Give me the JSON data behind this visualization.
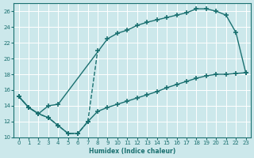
{
  "bg_color": "#cce8eb",
  "line_color": "#1a7070",
  "grid_color": "#ffffff",
  "xlabel": "Humidex (Indice chaleur)",
  "xlim": [
    -0.5,
    23.5
  ],
  "ylim": [
    10,
    27
  ],
  "xticks": [
    0,
    1,
    2,
    3,
    4,
    5,
    6,
    7,
    8,
    9,
    10,
    11,
    12,
    13,
    14,
    15,
    16,
    17,
    18,
    19,
    20,
    21,
    22,
    23
  ],
  "yticks": [
    10,
    12,
    14,
    16,
    18,
    20,
    22,
    24,
    26
  ],
  "curve_upper_x": [
    0,
    1,
    2,
    3,
    4,
    9,
    10,
    11,
    12,
    13,
    14,
    15,
    16,
    17,
    18,
    19,
    20,
    21,
    22,
    23
  ],
  "curve_upper_y": [
    15.2,
    13.8,
    13.0,
    14.0,
    14.2,
    22.5,
    23.2,
    23.6,
    24.2,
    24.6,
    24.9,
    25.2,
    25.5,
    25.8,
    26.3,
    26.3,
    26.0,
    25.5,
    23.3,
    18.2
  ],
  "curve_dashed_x": [
    0,
    1,
    2,
    3,
    4,
    5,
    6,
    7,
    8
  ],
  "curve_dashed_y": [
    15.2,
    13.8,
    13.0,
    12.5,
    11.5,
    10.5,
    10.5,
    12.0,
    21.0
  ],
  "curve_lower_x": [
    0,
    1,
    2,
    3,
    4,
    5,
    6,
    7,
    8,
    9,
    10,
    11,
    12,
    13,
    14,
    15,
    16,
    17,
    18,
    19,
    20,
    21,
    22,
    23
  ],
  "curve_lower_y": [
    15.2,
    13.8,
    13.0,
    12.5,
    11.5,
    10.5,
    10.5,
    12.0,
    13.3,
    13.8,
    14.2,
    14.6,
    15.0,
    15.4,
    15.8,
    16.3,
    16.7,
    17.1,
    17.5,
    17.8,
    18.0,
    18.0,
    18.1,
    18.2
  ]
}
